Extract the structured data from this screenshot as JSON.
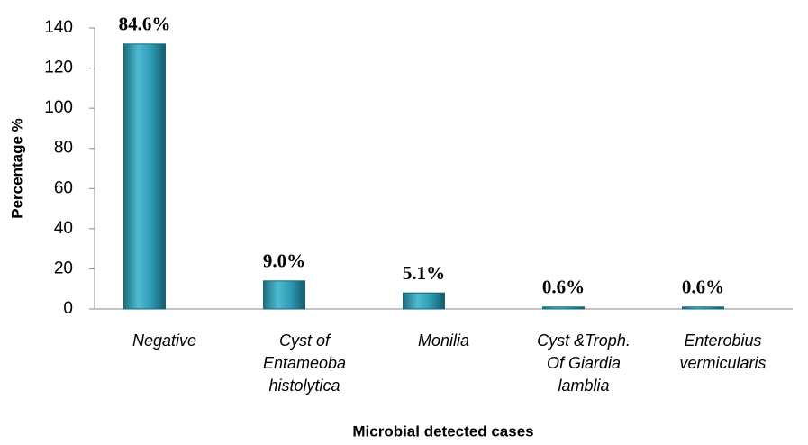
{
  "chart_data": {
    "type": "bar",
    "x_label": "Microbial detected cases",
    "y_label": "Percentage %",
    "categories": [
      "Negative",
      "Cyst of Entameoba histolytica",
      "Monilia",
      "Cyst &Troph. Of Giardia lamblia",
      "Enterobius vermicularis"
    ],
    "values": [
      132,
      14,
      8,
      1,
      1
    ],
    "annotations": [
      "84.6%",
      "9.0%",
      "5.1%",
      "0.6%",
      "0.6%"
    ],
    "color": "#2e9cb5",
    "ylim": [
      0,
      140
    ],
    "yticks": [
      0,
      20,
      40,
      60,
      80,
      100,
      120,
      140
    ]
  }
}
